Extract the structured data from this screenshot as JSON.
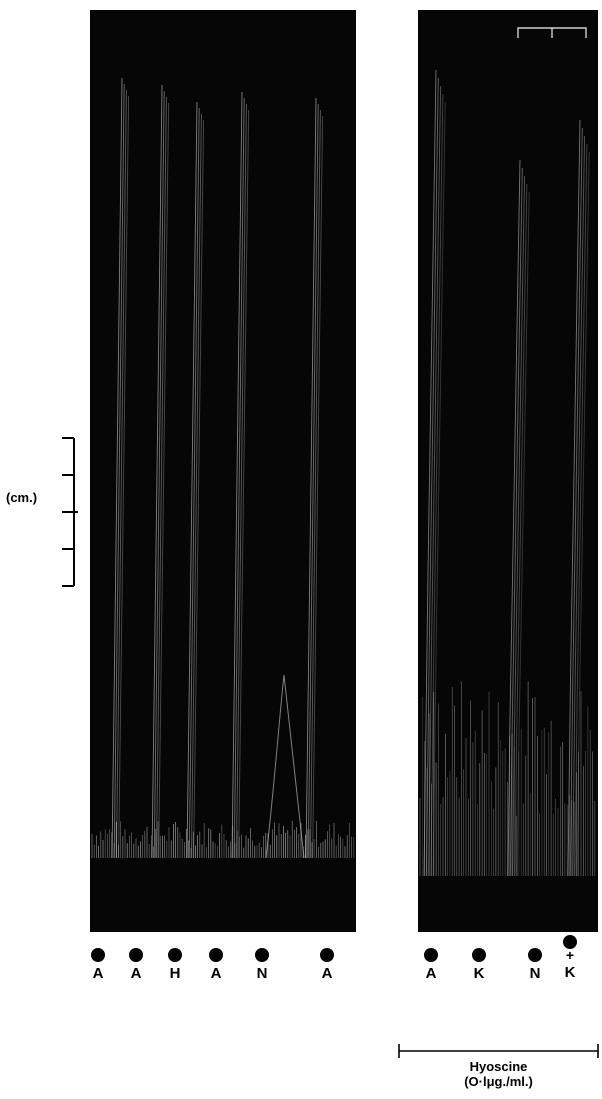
{
  "figure": {
    "scale_label": "(cm.)",
    "markers_left": [
      {
        "label": "A",
        "plus": ""
      },
      {
        "label": "A",
        "plus": ""
      },
      {
        "label": "H",
        "plus": ""
      },
      {
        "label": "A",
        "plus": ""
      },
      {
        "label": "N",
        "plus": ""
      },
      {
        "label": "A",
        "plus": ""
      }
    ],
    "markers_right": [
      {
        "label": "A",
        "plus": ""
      },
      {
        "label": "K",
        "plus": ""
      },
      {
        "label": "N",
        "plus": ""
      },
      {
        "label": "K",
        "plus": "+"
      }
    ],
    "treatment": {
      "name": "Hyoscine",
      "dose": "(O·lμg./ml.)"
    }
  },
  "colors": {
    "background": "#ffffff",
    "trace_panel": "#060606",
    "trace_stroke": "#e8e8e8",
    "text": "#000000"
  }
}
